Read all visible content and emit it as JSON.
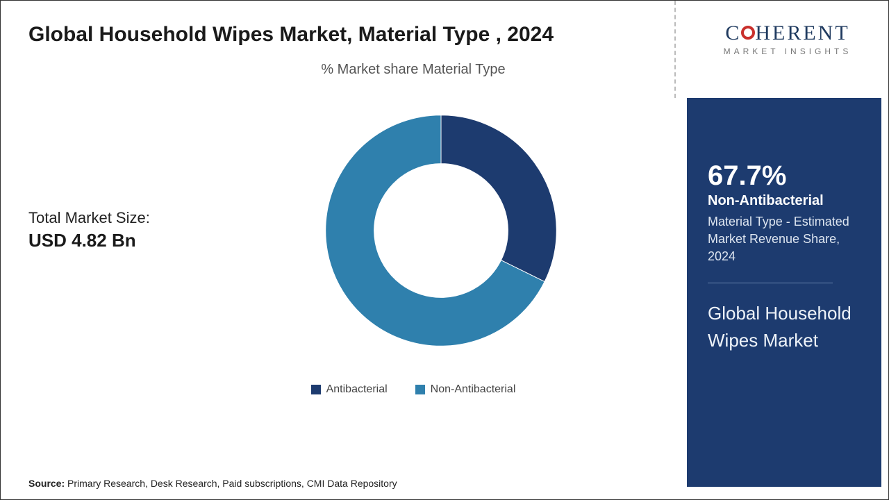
{
  "title": "Global Household Wipes Market, Material Type , 2024",
  "chart": {
    "type": "donut",
    "subtitle": "% Market share Material Type",
    "slices": [
      {
        "label": "Antibacterial",
        "value": 32.3,
        "display": "xx.x%",
        "color": "#1d3b6f"
      },
      {
        "label": "Non-Antibacterial",
        "value": 67.7,
        "display": "67.7%",
        "color": "#2f80ad"
      }
    ],
    "inner_radius": 0.58,
    "outer_radius": 1.0,
    "start_angle_deg": 0,
    "background_color": "#ffffff"
  },
  "market_size": {
    "label": "Total Market Size:",
    "value": "USD 4.82 Bn"
  },
  "legend": [
    {
      "label": "Antibacterial",
      "color": "#1d3b6f"
    },
    {
      "label": "Non-Antibacterial",
      "color": "#2f80ad"
    }
  ],
  "source": {
    "prefix": "Source:",
    "text": " Primary Research, Desk Research, Paid subscriptions, CMI Data Repository"
  },
  "logo": {
    "main": "C HERENT",
    "accent_index": 1,
    "sub": "MARKET INSIGHTS"
  },
  "panel": {
    "bg_color": "#1d3b6f",
    "text_color": "#ffffff",
    "percent": "67.7%",
    "category": "Non-Antibacterial",
    "desc": "Material Type  - Estimated Market Revenue Share, 2024",
    "title": "Global Household Wipes Market"
  }
}
